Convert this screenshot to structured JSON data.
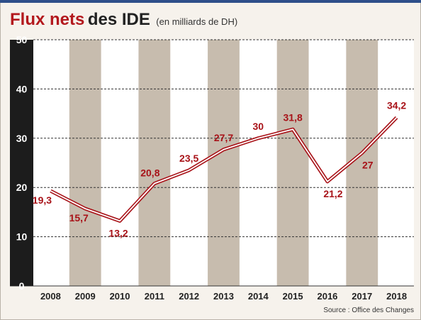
{
  "title_part1": "Flux nets",
  "title_part2": "des IDE",
  "subtitle": "(en milliards de DH)",
  "source": "Source : Office des Changes",
  "colors": {
    "line": "#a81218",
    "label": "#a81218",
    "stripe": "#c7bcae",
    "plot_bg": "#ffffff",
    "axis_bar": "#1c1c1c"
  },
  "chart_data": {
    "type": "line",
    "categories": [
      "2008",
      "2009",
      "2010",
      "2011",
      "2012",
      "2013",
      "2014",
      "2015",
      "2016",
      "2017",
      "2018"
    ],
    "values": [
      19.3,
      15.7,
      13.2,
      20.8,
      23.5,
      27.7,
      30,
      31.8,
      21.2,
      27,
      34.2
    ],
    "value_labels": [
      "19,3",
      "15,7",
      "13,2",
      "20,8",
      "23,5",
      "27,7",
      "30",
      "31,8",
      "21,2",
      "27",
      "34,2"
    ],
    "yticks": [
      0,
      10,
      20,
      30,
      40,
      50
    ],
    "ylim": [
      0,
      50
    ],
    "title": "Flux nets des IDE",
    "ylabel": "",
    "xlabel": "",
    "grid": true
  }
}
